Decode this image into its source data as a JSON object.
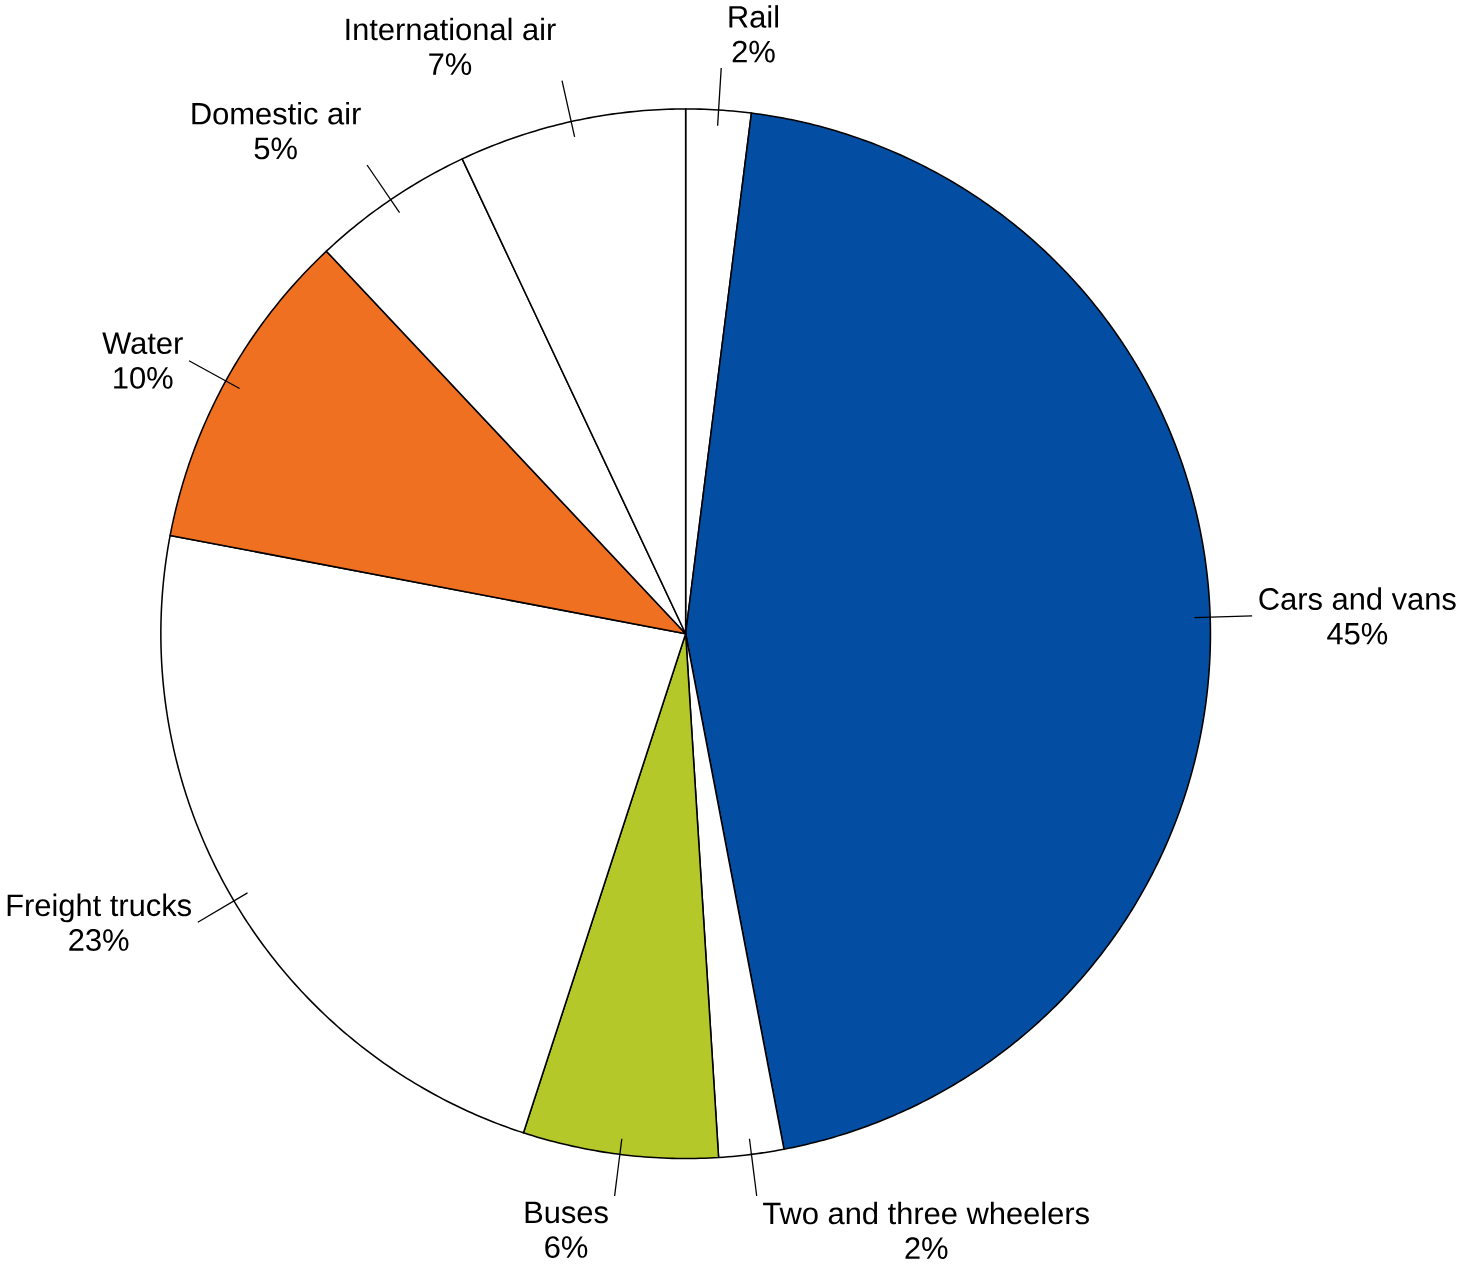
{
  "chart_data": {
    "type": "pie",
    "categories": [
      "Rail",
      "Cars and vans",
      "Two and three wheelers",
      "Buses",
      "Freight trucks",
      "Water",
      "Domestic air",
      "International air"
    ],
    "values": [
      2,
      45,
      2,
      6,
      23,
      10,
      5,
      7
    ],
    "value_labels": [
      "2%",
      "45%",
      "2%",
      "6%",
      "23%",
      "10%",
      "5%",
      "7%"
    ],
    "colors": [
      "#ffffff",
      "#034ea2",
      "#ffffff",
      "#b5c82a",
      "#ffffff",
      "#f07022",
      "#ffffff",
      "#ffffff"
    ]
  }
}
